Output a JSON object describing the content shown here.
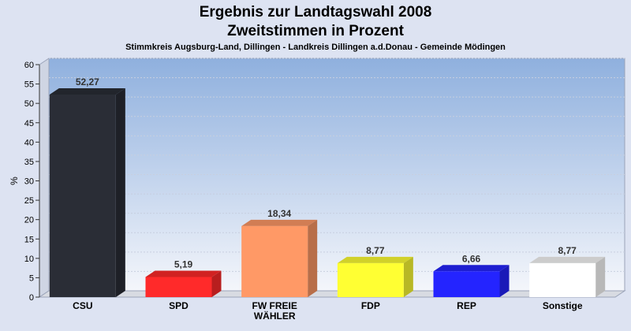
{
  "chart_data": {
    "type": "bar",
    "title": "Ergebnis zur Landtagswahl 2008",
    "subtitle_line": "Zweitstimmen in Prozent",
    "subtitle": "Stimmkreis Augsburg-Land, Dillingen - Landkreis Dillingen a.d.Donau - Gemeinde Mödingen",
    "ylabel": "%",
    "ylim": [
      0,
      60
    ],
    "yticks": [
      "0",
      "5",
      "10",
      "15",
      "20",
      "25",
      "30",
      "35",
      "40",
      "45",
      "50",
      "55",
      "60"
    ],
    "categories": [
      [
        "CSU"
      ],
      [
        "SPD"
      ],
      [
        "FW FREIE",
        "WÄHLER"
      ],
      [
        "FDP"
      ],
      [
        "REP"
      ],
      [
        "Sonstige"
      ]
    ],
    "values": [
      52.27,
      5.19,
      18.34,
      8.77,
      6.66,
      8.77
    ],
    "value_labels": [
      "52,27",
      "5,19",
      "18,34",
      "8,77",
      "6,66",
      "8,77"
    ],
    "colors": [
      "#2a2d36",
      "#ff2a2a",
      "#ff9966",
      "#ffff33",
      "#2424ff",
      "#ffffff"
    ],
    "grid": true
  }
}
